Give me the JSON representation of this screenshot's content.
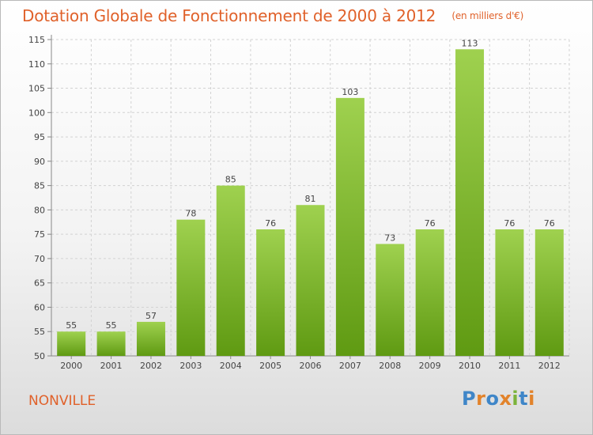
{
  "header": {
    "title": "Dotation Globale de Fonctionnement de 2000 à 2012",
    "unit": "(en milliers d'€)"
  },
  "footer": {
    "city": "NONVILLE",
    "logo": "Proxiti"
  },
  "colors": {
    "accent": "#e0612a",
    "bar_top": "#9fd14f",
    "bar_bottom": "#5f9a12",
    "logo_letters": [
      "#3f86c8",
      "#e2832b",
      "#3f86c8",
      "#e2832b",
      "#7bb33a",
      "#3f86c8",
      "#e2832b"
    ]
  },
  "chart_data": {
    "type": "bar",
    "categories": [
      "2000",
      "2001",
      "2002",
      "2003",
      "2004",
      "2005",
      "2006",
      "2007",
      "2008",
      "2009",
      "2010",
      "2011",
      "2012"
    ],
    "values": [
      55,
      55,
      57,
      78,
      85,
      76,
      81,
      103,
      73,
      76,
      113,
      76,
      76
    ],
    "ylim": [
      50,
      115
    ],
    "yticks": [
      50,
      55,
      60,
      65,
      70,
      75,
      80,
      85,
      90,
      95,
      100,
      105,
      110,
      115
    ],
    "grid": true,
    "data_labels": true
  }
}
